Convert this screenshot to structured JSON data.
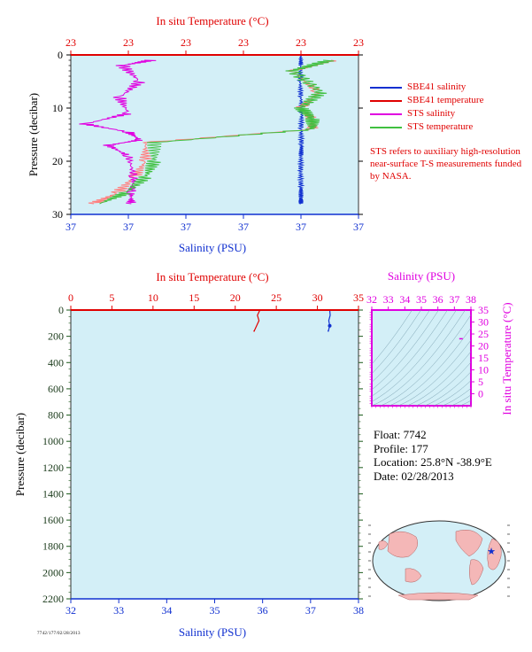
{
  "chart_data": [
    {
      "type": "line",
      "title": "",
      "top_axis": {
        "label": "In situ Temperature (°C)",
        "ticks": [
          "23",
          "23",
          "23",
          "23",
          "23",
          "23"
        ]
      },
      "bottom_axis": {
        "label": "Salinity (PSU)",
        "ticks": [
          "37",
          "37",
          "37",
          "37",
          "37",
          "37"
        ]
      },
      "y_axis": {
        "label": "Pressure (decibar)",
        "ticks": [
          "0",
          "10",
          "20",
          "30"
        ],
        "range": [
          0,
          30
        ],
        "inverted": true
      },
      "x_plot_range": [
        0,
        1
      ],
      "series": [
        {
          "name": "SBE41 salinity",
          "color": "#1030d0",
          "x": [
            0.799,
            0.8,
            0.797,
            0.8,
            0.803,
            0.8,
            0.802,
            0.8,
            0.799,
            0.8,
            0.8,
            0.8
          ],
          "y": [
            0,
            2,
            5,
            8,
            11,
            14,
            17,
            19,
            22,
            25,
            27,
            28
          ]
        },
        {
          "name": "SBE41 temperature",
          "color": "#ff7f7f",
          "x": [
            0.92,
            0.77,
            0.86,
            0.8,
            0.84,
            0.84,
            0.26,
            0.26,
            0.22,
            0.16,
            0.08
          ],
          "y": [
            1,
            3,
            7,
            10,
            12,
            14,
            16.5,
            20,
            23,
            26,
            28
          ]
        },
        {
          "name": "STS salinity",
          "color": "#e000e0",
          "x": [
            0.28,
            0.18,
            0.24,
            0.17,
            0.2,
            0.05,
            0.2,
            0.24,
            0.13,
            0.2,
            0.22,
            0.21,
            0.21
          ],
          "y": [
            1,
            2,
            5,
            8,
            11,
            13,
            14.5,
            16,
            17,
            19,
            23,
            26,
            28
          ]
        },
        {
          "name": "STS temperature",
          "color": "#40c040",
          "x": [
            0.9,
            0.77,
            0.87,
            0.8,
            0.84,
            0.84,
            0.29,
            0.29,
            0.26,
            0.19,
            0.1
          ],
          "y": [
            1,
            3,
            7,
            10,
            12,
            14,
            16.5,
            20,
            23,
            26,
            28
          ]
        }
      ],
      "background": "#d3eff7"
    },
    {
      "type": "line",
      "title": "",
      "top_axis": {
        "label": "In situ Temperature (°C)",
        "range": [
          0,
          35
        ],
        "ticks": [
          "0",
          "5",
          "10",
          "15",
          "20",
          "25",
          "30",
          "35"
        ]
      },
      "bottom_axis": {
        "label": "Salinity (PSU)",
        "range": [
          32,
          38
        ],
        "ticks": [
          "32",
          "33",
          "34",
          "35",
          "36",
          "37",
          "38"
        ]
      },
      "y_axis": {
        "label": "Pressure (decibar)",
        "range": [
          0,
          2200
        ],
        "inverted": true,
        "ticks": [
          "0",
          "200",
          "400",
          "600",
          "800",
          "1000",
          "1200",
          "1400",
          "1600",
          "1800",
          "2000",
          "2200"
        ]
      },
      "series": [
        {
          "name": "temperature",
          "color": "#e00000",
          "axis": "top",
          "x": [
            23.0,
            22.7,
            22.9,
            22.6,
            22.3
          ],
          "y": [
            0,
            40,
            80,
            120,
            160
          ]
        },
        {
          "name": "salinity",
          "color": "#1030d0",
          "axis": "bottom",
          "x": [
            37.4,
            37.41,
            37.38,
            37.4,
            37.37
          ],
          "y": [
            0,
            40,
            80,
            120,
            160
          ]
        }
      ],
      "background": "#d3eff7"
    },
    {
      "type": "scatter",
      "title": "",
      "top_axis": {
        "label": "Salinity (PSU)",
        "range": [
          32,
          38
        ],
        "ticks": [
          "32",
          "33",
          "34",
          "35",
          "36",
          "37",
          "38"
        ]
      },
      "y_axis": {
        "label": "In situ Temperature (°C)",
        "range": [
          -5,
          35
        ],
        "ticks": [
          "0",
          "5",
          "10",
          "15",
          "20",
          "25",
          "30",
          "35"
        ]
      },
      "points": [
        {
          "x": 37.4,
          "y": 23
        }
      ],
      "color": "#e000e0"
    }
  ],
  "legend": {
    "items": [
      {
        "label": "SBE41 salinity",
        "color": "#1030d0"
      },
      {
        "label": "SBE41 temperature",
        "color": "#e00000"
      },
      {
        "label": "STS salinity",
        "color": "#e000e0"
      },
      {
        "label": "STS temperature",
        "color": "#40c040"
      }
    ]
  },
  "note": "STS refers to auxiliary high-resolution near-surface T-S measurements funded by NASA.",
  "info": {
    "float": "Float:  7742",
    "profile": "Profile:  177",
    "location": "Location:  25.8°N  -38.9°E",
    "date": "Date:  02/28/2013"
  },
  "footer": "7742/177/02/28/2013"
}
